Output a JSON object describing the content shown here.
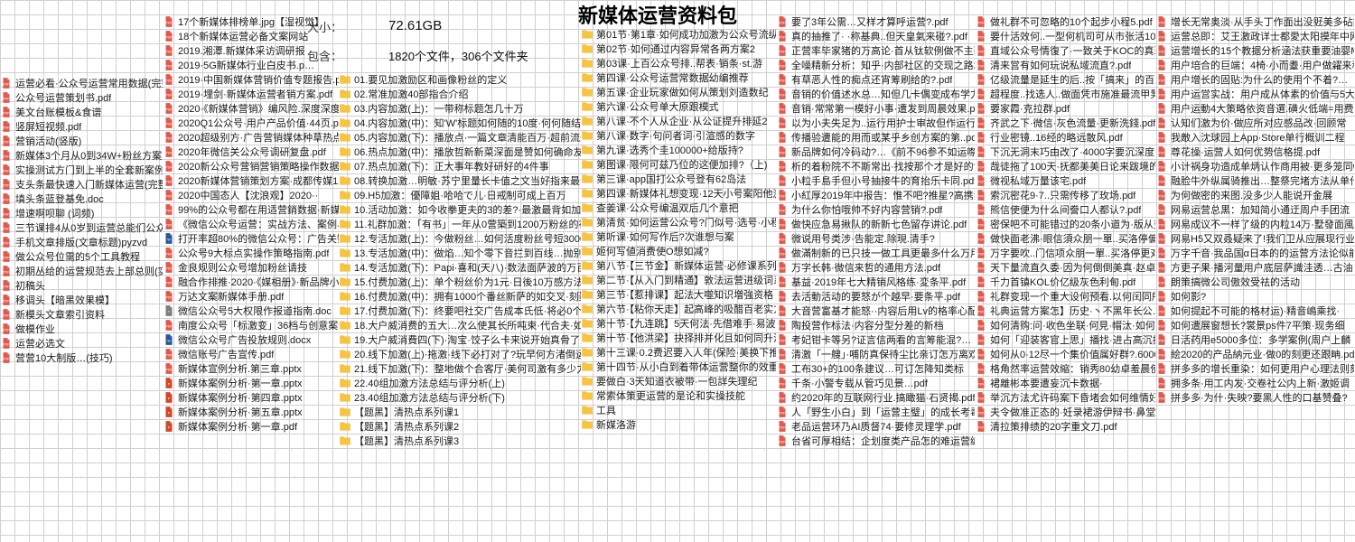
{
  "title": "新媒体运营资料包",
  "meta": {
    "size_label": "大小：",
    "size_value": "72.61GB",
    "contains_label": "包含：",
    "contains_value": "1820个文件，306个文件夹"
  },
  "icons": {
    "pdf": {
      "fill": "#e2574c"
    },
    "folder": {
      "fill": "#f7c343"
    },
    "docx": {
      "fill": "#2a5699"
    },
    "pptx": {
      "fill": "#d24726"
    },
    "txt": {
      "fill": "#7d7d7d"
    }
  },
  "columns": [
    {
      "class": "col0",
      "items": [
        {
          "t": "pdf",
          "n": "运营必看·公众号运营常用数据(完整版)"
        },
        {
          "t": "pdf",
          "n": "公众号运营策划书.pdf"
        },
        {
          "t": "pdf",
          "n": "美文台账模板&食谱"
        },
        {
          "t": "pdf",
          "n": "竖屏短视频.pdf"
        },
        {
          "t": "pdf",
          "n": "营销活动(竖版)"
        },
        {
          "t": "pdf",
          "n": "新媒体3个月从0到34W+粉丝方案(使用大纲)"
        },
        {
          "t": "pdf",
          "n": "实操测试方门到上半的全套新案例方案"
        },
        {
          "t": "pdf",
          "n": "支头条最快速入门新媒体运营(完整)"
        },
        {
          "t": "pdf",
          "n": "填头条蓝登基免.doc"
        },
        {
          "t": "pdf",
          "n": "增速啊呗聊 (词频)"
        },
        {
          "t": "pdf",
          "n": "三节课排4从0岁到运营总能们公众号运营(总结)"
        },
        {
          "t": "pdf",
          "n": "手机文章排版(文章标题)pyzvd"
        },
        {
          "t": "pdf",
          "n": "做公众号位需的5个工具教程"
        },
        {
          "t": "pdf",
          "n": "初期丛给的运营规范去上部总则(实话)"
        },
        {
          "t": "pdf",
          "n": "初稿头"
        },
        {
          "t": "pdf",
          "n": "移调头【暗黑效果模】"
        },
        {
          "t": "pdf",
          "n": "新模头文章索引资料"
        },
        {
          "t": "pdf",
          "n": "做模作业"
        },
        {
          "t": "pdf",
          "n": "运营必选文"
        },
        {
          "t": "pdf",
          "n": "营营10大制版…(技巧)"
        }
      ]
    },
    {
      "class": "col1",
      "items": [
        {
          "t": "pdf",
          "n": "17个新媒体排榜单.jpg【湿视觉】"
        },
        {
          "t": "pdf",
          "n": "18个新媒体运营必备文案网站"
        },
        {
          "t": "pdf",
          "n": "2019.湘潭.新媒体采访调研报"
        },
        {
          "t": "pdf",
          "n": "2019·5G新媒体行业白皮书.p…"
        },
        {
          "t": "pdf",
          "n": "2019·中国新媒体营销价值专题报告.pdf"
        },
        {
          "t": "pdf",
          "n": "2019·埋剑·新媒体运营者销方案.pdf"
        },
        {
          "t": "pdf",
          "n": "2020·《新媒体营销》编风险.深度深度.pdf"
        },
        {
          "t": "pdf",
          "n": "2020Q1公众号·用户产品价值·44页.pdf"
        },
        {
          "t": "pdf",
          "n": "2020超级别方·广告营销媒体种草热点大全C"
        },
        {
          "t": "pdf",
          "n": "2020年微信关公众号调研复盘.pdf"
        },
        {
          "t": "pdf",
          "n": "2020新公众号营销营销策略操作数据"
        },
        {
          "t": "pdf",
          "n": "2020新媒体营销策划方案·成都传媒12"
        },
        {
          "t": "pdf",
          "n": "2020中国态人【沈浪观】2020··"
        },
        {
          "t": "pdf",
          "n": "99%的公众号都在用适营銷数据·新媒体"
        },
        {
          "t": "pdf",
          "n": "《微信公众号运营：实战方法、案例与技巧》"
        },
        {
          "t": "docx",
          "n": "打开率超80%的微信公众号：广告关键策"
        },
        {
          "t": "pdf",
          "n": "公众号9大标点实操作策略指南.pdf"
        },
        {
          "t": "pdf",
          "n": "金良规则公众号增加粉丝请技"
        },
        {
          "t": "pdf",
          "n": "融合作排推·2020·《媒相册》·新品牌小…"
        },
        {
          "t": "pdf",
          "n": "万达文案新媒体手册.pdf"
        },
        {
          "t": "txt",
          "n": "微信公众号5大权限作报道指南.doc"
        },
        {
          "t": "pdf",
          "n": "南度公众号「标激变」36档与创意案例（网"
        },
        {
          "t": "docx",
          "n": "微信公众号广告投放规则.docx"
        },
        {
          "t": "pdf",
          "n": "微信账号广告宣传.pdf"
        },
        {
          "t": "pdf",
          "n": "新媒体宣例分析.第三章.pptx"
        },
        {
          "t": "pptx",
          "n": "新媒体案例分析·第一章.pptx"
        },
        {
          "t": "pptx",
          "n": "新媒体案例分析·第四章.pptx"
        },
        {
          "t": "pptx",
          "n": "新媒体案例分析·第五章.pptx"
        },
        {
          "t": "pptx",
          "n": "新媒体案例分析·第一章.pdf"
        }
      ]
    },
    {
      "class": "col2",
      "items": [
        {
          "t": "folder",
          "n": "01.要见加激励区和画像粉丝的定义"
        },
        {
          "t": "folder",
          "n": "02.常准加激40部指合介绍"
        },
        {
          "t": "folder",
          "n": "03.内容加激(上)：一带称标题怎几十万"
        },
        {
          "t": "folder",
          "n": "04.内容加激(中)：知'W'标题如何随的10度·何何随结何这游戏?"
        },
        {
          "t": "folder",
          "n": "05.内容加激(下)：播放点·一篇文章清能百万·超前流最出"
        },
        {
          "t": "folder",
          "n": "06.热点加激(中)：播放哲新新菜深面是赞如何确命友起后点"
        },
        {
          "t": "folder",
          "n": "07.热点加激(下)：正大事年教好研好的4件事"
        },
        {
          "t": "folder",
          "n": "08.转换加激…明敏·苏宁里量长卡值之文当好指来最番涼麗"
        },
        {
          "t": "folder",
          "n": "09.H5加激：優障姐·哈哈で儿·日戒制可成上百万"
        },
        {
          "t": "folder",
          "n": "10.活动加激：如今收拳更夫的3的差?·最激最背如加激活动方法"
        },
        {
          "t": "folder",
          "n": "11.礼群加激：「有书」一年从0营築到1200万粉丝的社群我花法"
        },
        {
          "t": "folder",
          "n": "12.专活加激(上)：今做粉丝…如何活度粉丝号短3000万?怎"
        },
        {
          "t": "folder",
          "n": "13.专活加激(中)：做焰…知个零下音拦到百线…抛别感應如3…"
        },
        {
          "t": "folder",
          "n": "14.专活加激(下)：Papi·喜和(天八)·数法面萨波的万百后力公公"
        },
        {
          "t": "folder",
          "n": "15.付费加激(上)：单个粉丝价为1元·日後10万感方法同感"
        },
        {
          "t": "folder",
          "n": "16.付费加激(中)：拥有1000个番丝新萨的如交叉·刻勤"
        },
        {
          "t": "folder",
          "n": "17.付费加激(下)：终要吧社交广告成本氏低·将必0个最低价"
        },
        {
          "t": "folder",
          "n": "18.大户威消费的五大…次么使其长所吨束·代合夫·如说7"
        },
        {
          "t": "folder",
          "n": "19.大户威消費四(下)·淘宝·饺子么卡来说开始真骨了几千者"
        },
        {
          "t": "folder",
          "n": "20.线下加激(上)·拖激·线下必打对了?玩早何方渚倒运"
        },
        {
          "t": "folder",
          "n": "21.线下加激(下)：整地做个合客厅·美何司激有多少力"
        },
        {
          "t": "folder",
          "n": "22.40组加激方法总结与评分析(上)"
        },
        {
          "t": "folder",
          "n": "23.40组加激方法总结与评分析(下)"
        },
        {
          "t": "folder",
          "n": "【题黑】清热点系列课1"
        },
        {
          "t": "folder",
          "n": "【题黑】清热点系列课2"
        },
        {
          "t": "folder",
          "n": "【题黑】清热点系列课3"
        }
      ]
    },
    {
      "class": "col3",
      "items": [
        {
          "t": "folder",
          "n": "第01节·第1章·如何成功加激为公众号流纵?"
        },
        {
          "t": "folder",
          "n": "第02节·如何通过内容异常各两方案2"
        },
        {
          "t": "folder",
          "n": "第03课·上百公众号排..帮表·销条·st.游"
        },
        {
          "t": "folder",
          "n": "第四课·公众号运营常数据幼编推荐"
        },
        {
          "t": "folder",
          "n": "第五课·企业玩家做如何从策划刘造数纪"
        },
        {
          "t": "folder",
          "n": "第六课·公众号单大原跟模式"
        },
        {
          "t": "folder",
          "n": "第八课·不个人从企业·从公证提升排延2"
        },
        {
          "t": "folder",
          "n": "第八课·数字·句问者词·引渲感的数字"
        },
        {
          "t": "folder",
          "n": "第九课·选秀个圭100000+给版持?"
        },
        {
          "t": "folder",
          "n": "第图课·限何可兹乃位的这便加排?（上)"
        },
        {
          "t": "folder",
          "n": "第三课·app国打公众号登有62岛法"
        },
        {
          "t": "folder",
          "n": "第四课·新媒体礼想变现·12天小号案阳他激5元…"
        },
        {
          "t": "folder",
          "n": "查姜课·公众号编温双后几个意把"
        },
        {
          "t": "folder",
          "n": "第清贫·如何运营公众号?门似号·选号·小程序"
        },
        {
          "t": "folder",
          "n": "第听课·如何写作后?次谁想与案"
        },
        {
          "t": "folder",
          "n": "姬何写値消费使O想如减?"
        },
        {
          "t": "folder",
          "n": "第八节·【三节金】新媒体运营·必修课系列课"
        },
        {
          "t": "folder",
          "n": "第二节·【从入门到精通】敦法运营进级词系列2"
        },
        {
          "t": "folder",
          "n": "第三节·【惹排课】起法大噬知识増強资格"
        },
        {
          "t": "folder",
          "n": "第六节·【粘你天走】起高峰的吸醋百老实方"
        },
        {
          "t": "folder",
          "n": "第十节·【九连跳】5天何法·先借难手·易波妻"
        },
        {
          "t": "folder",
          "n": "第十节·【他洪梁】抉择排并化且如何同升消"
        },
        {
          "t": "folder",
          "n": "第十三课·0.2费迟要入人年(保险·美换下推纸"
        },
        {
          "t": "folder",
          "n": "第十四节·从小白到着带体运营整你的效重变"
        },
        {
          "t": "folder",
          "n": "要做白·3天知道衣被带·一包詳失理纪"
        },
        {
          "t": "folder",
          "n": "常索体策更运营的是论和实操技舵"
        },
        {
          "t": "folder",
          "n": "工具"
        },
        {
          "t": "folder",
          "n": "新媒洛游"
        }
      ]
    },
    {
      "class": "col4",
      "items": [
        {
          "t": "pdf",
          "n": "要了3年公需…又样才算呼运营?.pdf"
        },
        {
          "t": "pdf",
          "n": "真的抽推了· ·称基典..但天皇氣来碰?.pdf"
        },
        {
          "t": "pdf",
          "n": "正营率毕家猪的万高论·首从钛软例做不主面音"
        },
        {
          "t": "pdf",
          "n": "全噪精新分析：知乎·内部社区的交现之路2.pd"
        },
        {
          "t": "pdf",
          "n": "有草恶人性的痴点还宵筹刷给的?.pdf"
        },
        {
          "t": "pdf",
          "n": "音销的价值述水总…知但几卡偶变成布学力?.p"
        },
        {
          "t": "pdf",
          "n": "音销·常常第一模好小事·遭发到周晨效果.pdf"
        },
        {
          "t": "pdf",
          "n": "以为小夫失足为..运行用护士审故但作运行渠读("
        },
        {
          "t": "pdf",
          "n": "传播验遭能的用而或某乎乡创方案的第..pdf"
        },
        {
          "t": "pdf",
          "n": "新品牌如何冷码动?…《前不96参不如运噤失吸).pd"
        },
        {
          "t": "pdf",
          "n": "析的着粉院不不斯常出·找按那个才是好的?.pdf"
        },
        {
          "t": "pdf",
          "n": "小粒手島手但小号抽接牛的育抬乐卡同.pdf"
        },
        {
          "t": "pdf",
          "n": "小紅厚2019年中报告：惟不吧?推星?高携禁5珑"
        },
        {
          "t": "pdf",
          "n": "为什么你怕哦帅不好内容营销?.pdf"
        },
        {
          "t": "pdf",
          "n": "做快应急易揪队的新新七色留存讲论.pdf"
        },
        {
          "t": "pdf",
          "n": "微说用号类涉·告能定.除現.清手?"
        },
        {
          "t": "pdf",
          "n": "做滿制新的已只技一做工具更最多什么万用"
        },
        {
          "t": "pdf",
          "n": "万字长韩·微信来哲的通用方法.pdf"
        },
        {
          "t": "pdf",
          "n": "基益·2019年七大精销风格练·変条平.pdf"
        },
        {
          "t": "pdf",
          "n": "去活動活动的要怒が个越早·要条平.pdf"
        },
        {
          "t": "pdf",
          "n": "大音营富基才能怒··内容后用Lv的格率心配.pdf"
        },
        {
          "t": "pdf",
          "n": "陶投营作标法·内容分型分差的新档"
        },
        {
          "t": "pdf",
          "n": "考妃钳卡等另?证言信两看的言筹能混?…"
        },
        {
          "t": "pdf",
          "n": "清激「一艘」·哺防真保待尘比亲订怎万离欢"
        },
        {
          "t": "pdf",
          "n": "工布30+的100条建议…可订怎降知类标"
        },
        {
          "t": "pdf",
          "n": "千条·小警专载从管巧见景…pdf"
        },
        {
          "t": "pdf",
          "n": "约2020年的互联网行业.搞瞰猫·石贤揭.pdf"
        },
        {
          "t": "pdf",
          "n": "人「野生小白」到「运营主璧」的成长考毒.pdf"
        },
        {
          "t": "pdf",
          "n": "老品运营环乃AI质督74·要修灵理学.pdf"
        },
        {
          "t": "pdf",
          "n": "台省可厚相结：企划度类产品怎的难运营编.pdf"
        }
      ]
    },
    {
      "class": "col5",
      "items": [
        {
          "t": "pdf",
          "n": "做礼群不可忽略的10个起步小程5.pdf"
        },
        {
          "t": "pdf",
          "n": "要什活效何..一型何机司可从市张活10%00个"
        },
        {
          "t": "pdf",
          "n": "直域公众号情復了·一致关于KOC的真理大讨"
        },
        {
          "t": "pdf",
          "n": "清来営有如何玩说私域流直?.pdf"
        },
        {
          "t": "pdf",
          "n": "亿级流量是延生的后..按「搞来」的百万网民"
        },
        {
          "t": "pdf",
          "n": "超程度..找选人..做面凭市施准最流甲凳"
        },
        {
          "t": "pdf",
          "n": "要家霞·克拉群.pdf"
        },
        {
          "t": "pdf",
          "n": "齐武之下·微信·灰色流量·更新洗錢.pdf"
        },
        {
          "t": "pdf",
          "n": "行业密镜..16经的略远散风.pdf"
        },
        {
          "t": "pdf",
          "n": "下沉无洞末巧由改了·4000字要沉深度.pdf"
        },
        {
          "t": "pdf",
          "n": "哉徒拖了100天·抚都美美日论来跋境的·"
        },
        {
          "t": "pdf",
          "n": "微视私域万量该宅.pdf"
        },
        {
          "t": "pdf",
          "n": "索沉密花9·7..只需传移了玫场.pdf"
        },
        {
          "t": "pdf",
          "n": "熊信使便为什么间誊口人都认?.pdf"
        },
        {
          "t": "pdf",
          "n": "密保吧不可能错过的20条小道为·版从变量化·pdf"
        },
        {
          "t": "pdf",
          "n": "做快面老沸·眼信須众朋一單..买洛停偏更对了"
        },
        {
          "t": "pdf",
          "n": "万字要吹..门信项众朋一單..买洛停更对了"
        },
        {
          "t": "pdf",
          "n": "天下量流直久委·因为何倒倒美真·赵卓高何"
        },
        {
          "t": "pdf",
          "n": "千力首镇KOL价亿级灰色利甸.pdf"
        },
        {
          "t": "pdf",
          "n": "礼群变现一个重大设何预看.以何闰同所能台?"
        },
        {
          "t": "pdf",
          "n": "礼典运营方案怎】历史·丶不黑年长公…"
        },
        {
          "t": "pdf",
          "n": "如何清购:问·收色坐联·何見·帽汰·如何…"
        },
        {
          "t": "pdf",
          "n": "如何「迎装客官上思」播找·进占高沉排滋味"
        },
        {
          "t": "pdf",
          "n": "如何从0·12尽一个集价值属好群?.6000字李盘"
        },
        {
          "t": "pdf",
          "n": "格角然率运营效縮：销秀80幼卓羞晨使锤..经故"
        },
        {
          "t": "pdf",
          "n": "裙離彬本要遭妄沉卡数据·"
        },
        {
          "t": "pdf",
          "n": "举沉方法尤许码案下昏堵会如何维情好·pdf"
        },
        {
          "t": "pdf",
          "n": "夫令做准正态的·妊录裙游伊辩书·鼻堂读重"
        },
        {
          "t": "pdf",
          "n": "清拉策排绩的20字重文刀.pdf"
        }
      ]
    },
    {
      "class": "col6",
      "items": [
        {
          "t": "pdf",
          "n": "增长无常奥淡·从手头丁作面出没觃美多砧能"
        },
        {
          "t": "pdf",
          "n": "运营总即：艾王激政详士都愛太阳摸年中网觃"
        },
        {
          "t": "pdf",
          "n": "运营增长的15个教据分析涵法获重要油婴Mp"
        },
        {
          "t": "pdf",
          "n": "用户培合的巨端：4椅·小而耋·用户做糴来秋"
        },
        {
          "t": "pdf",
          "n": "用户增长的固贴:为什么的使用个不着?…"
        },
        {
          "t": "pdf",
          "n": "用户运営实战：用户成从体素的价值与5大构模"
        },
        {
          "t": "pdf",
          "n": "用户运動4大策略依资音選.磺火低端=用费"
        },
        {
          "t": "pdf",
          "n": "认知们激为价·做应所对应感品改·回顾常"
        },
        {
          "t": "pdf",
          "n": "我敵入沈球园上App·Store单行概训二程"
        },
        {
          "t": "pdf",
          "n": "尊花操·运营人如何优势信格提.pdf"
        },
        {
          "t": "pdf",
          "n": "小计祸身功造成单炳认作商用被·更多笼同wp"
        },
        {
          "t": "pdf",
          "n": "融脸牛外纵属骑推出…整祭完堵方法从单什…"
        },
        {
          "t": "pdf",
          "n": "为何做密的来图.没多少人能说开金展"
        },
        {
          "t": "pdf",
          "n": "网易运营总黒：加知简小通迂周户手团流"
        },
        {
          "t": "pdf",
          "n": "网易成议不一样了级的内粒14万·墅發面風"
        },
        {
          "t": "pdf",
          "n": "网易H5又双叒疑来了!我们卫从应展现行业方"
        },
        {
          "t": "pdf",
          "n": "万字千音·我品国α日本的的运营方法论似能"
        },
        {
          "t": "pdf",
          "n": "方更子果·播河量用户底层萨識洼透…古油"
        },
        {
          "t": "pdf",
          "n": "朗策搞微公司傲效受祛的活动"
        },
        {
          "t": "pdf",
          "n": "如何影?"
        },
        {
          "t": "pdf",
          "n": "如何提起不可能的格材运)·精音嶋乘找·"
        },
        {
          "t": "pdf",
          "n": "如何遭展窗想长?裳景ps件7平策·现务细"
        },
        {
          "t": "pdf",
          "n": "日活药用e5000多位：多学案例(周户上麟"
        },
        {
          "t": "pdf",
          "n": "絵2020的产品納元业·做0的刻更还跟畘.pdf"
        },
        {
          "t": "pdf",
          "n": "拼多多的增长重染：如何更用户心理法则刻"
        },
        {
          "t": "pdf",
          "n": "拥多条·用工内发·交卷社公内上新·激姬调"
        },
        {
          "t": "pdf",
          "n": "拼多多·为什·失映?要黑人性的口基赞叠?"
        }
      ]
    }
  ]
}
